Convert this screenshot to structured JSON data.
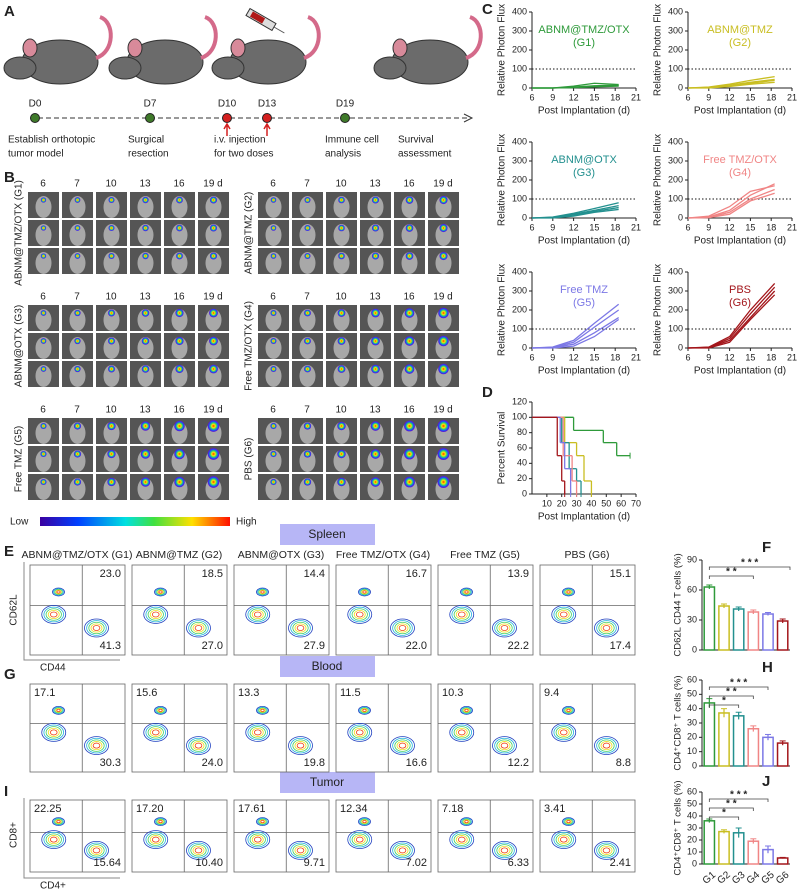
{
  "panel_labels": [
    "A",
    "B",
    "C",
    "D",
    "E",
    "F",
    "G",
    "H",
    "I",
    "J"
  ],
  "timeline": {
    "days": [
      "D0",
      "D7",
      "D10",
      "D13",
      "D19"
    ],
    "captions": [
      [
        "Establish orthotopic",
        "tumor model"
      ],
      [
        "Surgical",
        "resection"
      ],
      [
        "i.v. injection",
        "for two doses"
      ],
      [
        "Immune cell",
        "analysis"
      ],
      [
        "Survival",
        "assessment"
      ]
    ]
  },
  "imaging": {
    "days": [
      "6",
      "7",
      "10",
      "13",
      "16",
      "19 d"
    ],
    "groups": [
      "ABNM@TMZ/OTX (G1)",
      "ABNM@TMZ (G2)",
      "ABNM@OTX (G3)",
      "Free TMZ/OTX (G4)",
      "Free TMZ (G5)",
      "PBS (G6)"
    ],
    "scale": [
      "Low",
      "High"
    ]
  },
  "growth": {
    "type": "line",
    "ylabel": "Relative Photon Flux",
    "xlabel": "Post Implantation (d)",
    "xlim": [
      6,
      21
    ],
    "xticks": [
      6,
      9,
      12,
      15,
      18,
      21
    ],
    "ylim": [
      0,
      400
    ],
    "yticks": [
      0,
      100,
      200,
      300,
      400
    ],
    "reference": 100,
    "x": [
      6,
      9,
      12,
      15,
      18.5
    ],
    "charts": [
      {
        "title": [
          "ABNM@TMZ/OTX",
          "(G1)"
        ],
        "color": "#2e9a3a",
        "series": [
          [
            0,
            0,
            5,
            12,
            15
          ],
          [
            0,
            0,
            3,
            8,
            12
          ],
          [
            0,
            0,
            10,
            25,
            18
          ],
          [
            0,
            0,
            2,
            6,
            10
          ]
        ]
      },
      {
        "title": [
          "ABNM@TMZ",
          "(G2)"
        ],
        "color": "#c9be22",
        "series": [
          [
            0,
            5,
            20,
            40,
            60
          ],
          [
            0,
            3,
            15,
            30,
            45
          ],
          [
            0,
            2,
            10,
            25,
            40
          ],
          [
            0,
            0,
            8,
            20,
            30
          ]
        ]
      },
      {
        "title": [
          "ABNM@OTX",
          "(G3)"
        ],
        "color": "#23908f",
        "series": [
          [
            0,
            5,
            25,
            50,
            80
          ],
          [
            0,
            3,
            20,
            40,
            65
          ],
          [
            0,
            2,
            15,
            35,
            55
          ],
          [
            0,
            0,
            10,
            30,
            45
          ]
        ]
      },
      {
        "title": [
          "Free TMZ/OTX",
          "(G4)"
        ],
        "color": "#f08585",
        "series": [
          [
            0,
            5,
            40,
            120,
            180
          ],
          [
            0,
            10,
            60,
            140,
            170
          ],
          [
            0,
            3,
            30,
            100,
            150
          ],
          [
            0,
            2,
            20,
            90,
            130
          ]
        ]
      },
      {
        "title": [
          "Free TMZ",
          "(G5)"
        ],
        "color": "#7c78e6",
        "series": [
          [
            0,
            5,
            40,
            130,
            230
          ],
          [
            0,
            3,
            30,
            110,
            200
          ],
          [
            0,
            2,
            20,
            80,
            160
          ],
          [
            0,
            0,
            10,
            60,
            150
          ]
        ]
      },
      {
        "title": [
          "PBS",
          "(G6)"
        ],
        "color": "#a3161b",
        "series": [
          [
            0,
            5,
            60,
            200,
            340
          ],
          [
            0,
            3,
            50,
            180,
            320
          ],
          [
            0,
            2,
            40,
            160,
            300
          ],
          [
            0,
            0,
            30,
            150,
            280
          ]
        ]
      }
    ]
  },
  "survival": {
    "type": "step",
    "ylabel": "Percent Survival",
    "xlabel": "Post Implantation (d)",
    "xlim": [
      0,
      70
    ],
    "xticks": [
      10,
      20,
      30,
      40,
      50,
      60,
      70
    ],
    "ylim": [
      0,
      120
    ],
    "yticks": [
      0,
      20,
      40,
      60,
      80,
      100,
      120
    ],
    "series": [
      {
        "color": "#2e9a3a",
        "x": [
          0,
          28,
          48,
          57,
          66
        ],
        "values": [
          100,
          83,
          67,
          50,
          50
        ]
      },
      {
        "color": "#c9be22",
        "x": [
          0,
          22,
          30,
          35,
          40
        ],
        "values": [
          100,
          67,
          50,
          17,
          0
        ]
      },
      {
        "color": "#23908f",
        "x": [
          0,
          20,
          25,
          30,
          33
        ],
        "values": [
          100,
          67,
          33,
          17,
          0
        ]
      },
      {
        "color": "#f08585",
        "x": [
          0,
          21,
          27,
          30
        ],
        "values": [
          100,
          50,
          17,
          0
        ]
      },
      {
        "color": "#7c78e6",
        "x": [
          0,
          19,
          22,
          26
        ],
        "values": [
          100,
          67,
          33,
          0
        ]
      },
      {
        "color": "#a3161b",
        "x": [
          0,
          17,
          20,
          22
        ],
        "values": [
          100,
          50,
          17,
          0
        ]
      }
    ]
  },
  "flow": {
    "sections": [
      "Spleen",
      "Blood",
      "Tumor"
    ],
    "spleen": {
      "ylabel": "CD62L",
      "xlabel": "CD44",
      "quadrants": [
        [
          "23.0",
          "41.3"
        ],
        [
          "18.5",
          "27.0"
        ],
        [
          "14.4",
          "27.9"
        ],
        [
          "16.7",
          "22.0"
        ],
        [
          "13.9",
          "22.2"
        ],
        [
          "15.1",
          "17.4"
        ]
      ]
    },
    "blood": {
      "quadrants": [
        [
          "17.1",
          "30.3"
        ],
        [
          "15.6",
          "24.0"
        ],
        [
          "13.3",
          "19.8"
        ],
        [
          "11.5",
          "16.6"
        ],
        [
          "10.3",
          "12.2"
        ],
        [
          "9.4",
          "8.8"
        ]
      ]
    },
    "tumor": {
      "ylabel": "CD8+",
      "xlabel": "CD4+",
      "quadrants": [
        [
          "22.25",
          "15.64"
        ],
        [
          "17.20",
          "10.40"
        ],
        [
          "17.61",
          "9.71"
        ],
        [
          "12.34",
          "7.02"
        ],
        [
          "7.18",
          "6.33"
        ],
        [
          "3.41",
          "2.41"
        ]
      ]
    }
  },
  "bars": {
    "type": "bar",
    "categories": [
      "G1",
      "G2",
      "G3",
      "G4",
      "G5",
      "G6"
    ],
    "colors": [
      "#2e9a3a",
      "#c9be22",
      "#23908f",
      "#f08585",
      "#7c78e6",
      "#a3161b"
    ],
    "charts": [
      {
        "ylabel": "CD62L CD44 T cells (%)",
        "ylim": [
          0,
          90
        ],
        "yticks": [
          0,
          30,
          60,
          90
        ],
        "values": [
          63,
          44,
          41,
          38,
          36,
          29
        ],
        "errors": [
          2,
          2,
          2,
          2,
          1.5,
          2
        ],
        "significance": [
          "* *",
          "* * *"
        ]
      },
      {
        "ylabel": "CD4⁺CD8⁺ T cells (%)",
        "ylim": [
          0,
          60
        ],
        "yticks": [
          0,
          10,
          20,
          30,
          40,
          50,
          60
        ],
        "values": [
          44,
          37,
          35,
          26,
          20,
          16
        ],
        "errors": [
          3,
          3,
          2.5,
          2,
          2,
          1.5
        ],
        "significance": [
          "*",
          "* *",
          "* * *"
        ]
      },
      {
        "ylabel": "CD4⁺CD8⁺ T cells (%)",
        "ylim": [
          0,
          60
        ],
        "yticks": [
          0,
          10,
          20,
          30,
          40,
          50,
          60
        ],
        "values": [
          36,
          27,
          26,
          19,
          12,
          5
        ],
        "errors": [
          1.5,
          1.5,
          4,
          2,
          3,
          0.5
        ],
        "significance": [
          "*",
          "* *",
          "* * *"
        ]
      }
    ]
  }
}
